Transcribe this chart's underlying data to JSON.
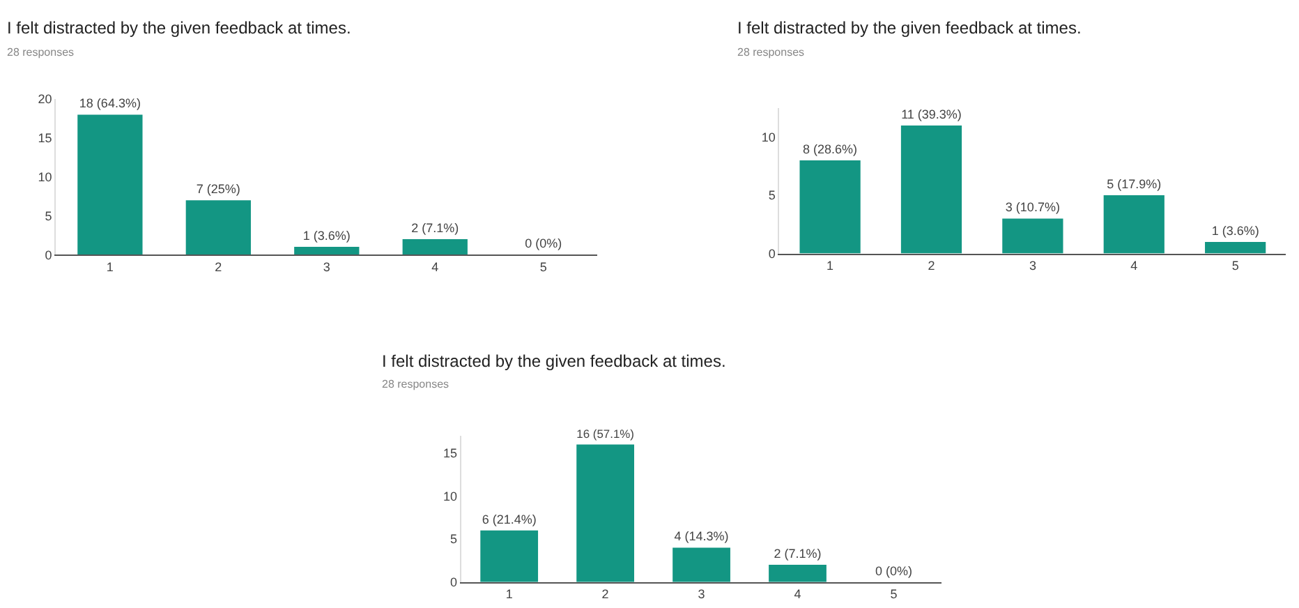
{
  "chart_data": [
    {
      "type": "bar",
      "title": "I felt distracted by the given feedback at times.",
      "subtitle": "28 responses",
      "categories": [
        "1",
        "2",
        "3",
        "4",
        "5"
      ],
      "values": [
        18,
        7,
        1,
        2,
        0
      ],
      "value_labels": [
        "18 (64.3%)",
        "7 (25%)",
        "1 (3.6%)",
        "2 (7.1%)",
        "0 (0%)"
      ],
      "color": "#139683",
      "ylim": [
        0,
        20
      ],
      "yticks": [
        0,
        5,
        10,
        15,
        20
      ]
    },
    {
      "type": "bar",
      "title": "I felt distracted by the given feedback at times.",
      "subtitle": "28 responses",
      "categories": [
        "1",
        "2",
        "3",
        "4",
        "5"
      ],
      "values": [
        8,
        11,
        3,
        5,
        1
      ],
      "value_labels": [
        "8 (28.6%)",
        "11 (39.3%)",
        "3 (10.7%)",
        "5 (17.9%)",
        "1 (3.6%)"
      ],
      "color": "#139683",
      "ylim": [
        0,
        12.5
      ],
      "yticks": [
        0,
        5,
        10
      ]
    },
    {
      "type": "bar",
      "title": "I felt distracted by the given feedback at times.",
      "subtitle": "28 responses",
      "categories": [
        "1",
        "2",
        "3",
        "4",
        "5"
      ],
      "values": [
        6,
        16,
        4,
        2,
        0
      ],
      "value_labels": [
        "6 (21.4%)",
        "16 (57.1%)",
        "4 (14.3%)",
        "2 (7.1%)",
        "0 (0%)"
      ],
      "color": "#139683",
      "ylim": [
        0,
        17
      ],
      "yticks": [
        0,
        5,
        10,
        15
      ]
    }
  ]
}
